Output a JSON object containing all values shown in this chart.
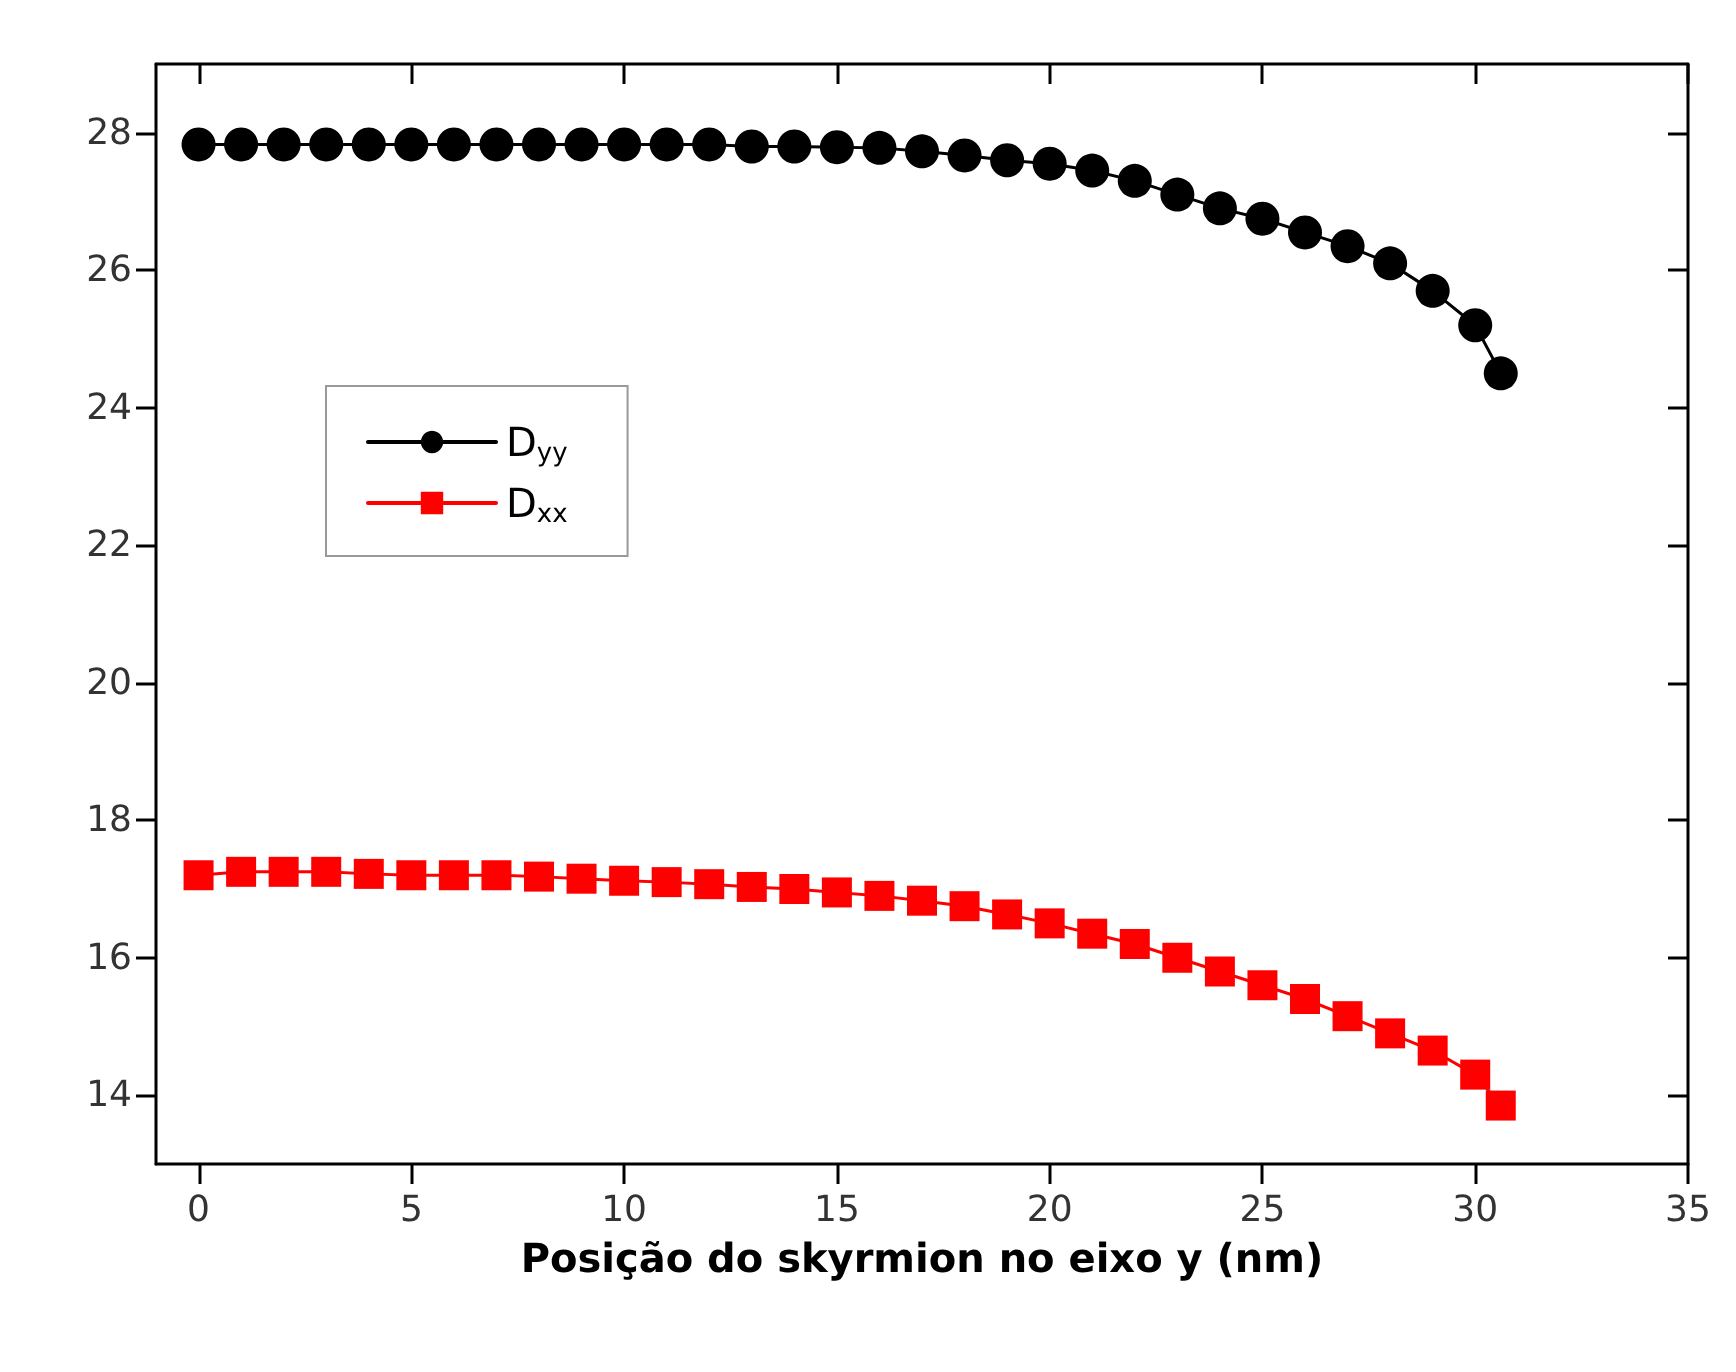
{
  "chart_data": {
    "type": "line",
    "xlabel": "Posição do skyrmion no eixo y (nm)",
    "xlim": [
      -1,
      35
    ],
    "xticks": [
      0,
      5,
      10,
      15,
      20,
      25,
      30,
      35
    ],
    "ylim": [
      13,
      29
    ],
    "yticks": [
      14,
      16,
      18,
      20,
      22,
      24,
      26,
      28
    ],
    "grid": false,
    "legend": "top left",
    "series": [
      {
        "name": "D$_{yy}$",
        "color": "#000000",
        "marker": "circle",
        "x": [
          0,
          1,
          2,
          3,
          4,
          5,
          6,
          7,
          8,
          9,
          10,
          11,
          12,
          13,
          14,
          15,
          16,
          17,
          18,
          19,
          20,
          21,
          22,
          23,
          24,
          25,
          26,
          27,
          28,
          29,
          30,
          30.6
        ],
        "values": [
          27.83,
          27.83,
          27.83,
          27.83,
          27.83,
          27.83,
          27.83,
          27.83,
          27.83,
          27.83,
          27.83,
          27.83,
          27.83,
          27.8,
          27.8,
          27.79,
          27.78,
          27.73,
          27.67,
          27.6,
          27.55,
          27.45,
          27.3,
          27.1,
          26.9,
          26.75,
          26.55,
          26.35,
          26.1,
          25.7,
          25.2,
          24.5
        ]
      },
      {
        "name": "D$_{xx}$",
        "color": "#ff0000",
        "marker": "square",
        "x": [
          0,
          1,
          2,
          3,
          4,
          5,
          6,
          7,
          8,
          9,
          10,
          11,
          12,
          13,
          14,
          15,
          16,
          17,
          18,
          19,
          20,
          21,
          22,
          23,
          24,
          25,
          26,
          27,
          28,
          29,
          30,
          30.6
        ],
        "values": [
          17.2,
          17.25,
          17.25,
          17.25,
          17.22,
          17.2,
          17.2,
          17.2,
          17.18,
          17.15,
          17.12,
          17.1,
          17.07,
          17.03,
          17.0,
          16.95,
          16.9,
          16.83,
          16.75,
          16.63,
          16.5,
          16.35,
          16.2,
          16.0,
          15.8,
          15.6,
          15.4,
          15.15,
          14.9,
          14.65,
          14.3,
          13.85
        ]
      }
    ]
  }
}
